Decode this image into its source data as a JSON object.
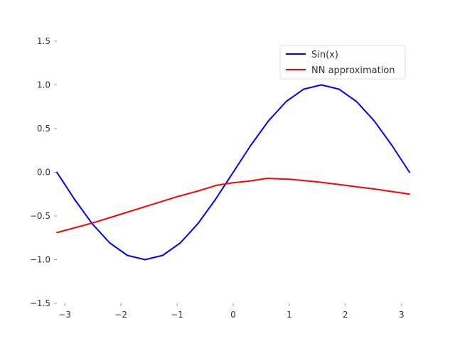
{
  "chart_data": {
    "type": "line",
    "title": "",
    "xlabel": "",
    "ylabel": "",
    "xlim": [
      -3.14159,
      3.14159
    ],
    "ylim": [
      -1.5,
      1.5
    ],
    "grid": false,
    "legend_position": "top-right",
    "x_ticks": [
      -3,
      -2,
      -1,
      0,
      1,
      2,
      3
    ],
    "x_tick_labels": [
      "−3",
      "−2",
      "−1",
      "0",
      "1",
      "2",
      "3"
    ],
    "y_ticks": [
      -1.5,
      -1.0,
      -0.5,
      0.0,
      0.5,
      1.0,
      1.5
    ],
    "y_tick_labels": [
      "−1.5",
      "−1.0",
      "−0.5",
      "0.0",
      "0.5",
      "1.0",
      "1.5"
    ],
    "series": [
      {
        "name": "Sin(x)",
        "color": "#0000ff",
        "x": [
          -3.1416,
          -2.8274,
          -2.5133,
          -2.1991,
          -1.885,
          -1.5708,
          -1.2566,
          -0.9425,
          -0.6283,
          -0.3142,
          0.0,
          0.3142,
          0.6283,
          0.9425,
          1.2566,
          1.5708,
          1.885,
          2.1991,
          2.5133,
          2.8274,
          3.1416
        ],
        "y": [
          0.0,
          -0.309,
          -0.5878,
          -0.809,
          -0.9511,
          -1.0,
          -0.9511,
          -0.809,
          -0.5878,
          -0.309,
          0.0,
          0.309,
          0.5878,
          0.809,
          0.9511,
          1.0,
          0.9511,
          0.809,
          0.5878,
          0.309,
          0.0
        ]
      },
      {
        "name": "NN approximation",
        "color": "#ff0000",
        "x": [
          -3.14,
          -2.5,
          -2.0,
          -1.5,
          -1.0,
          -0.6,
          -0.3,
          0.0,
          0.3,
          0.6,
          1.0,
          1.5,
          2.0,
          2.5,
          3.14
        ],
        "y": [
          -0.69,
          -0.58,
          -0.48,
          -0.38,
          -0.28,
          -0.21,
          -0.15,
          -0.12,
          -0.1,
          -0.07,
          -0.08,
          -0.11,
          -0.15,
          -0.19,
          -0.25
        ]
      }
    ]
  }
}
